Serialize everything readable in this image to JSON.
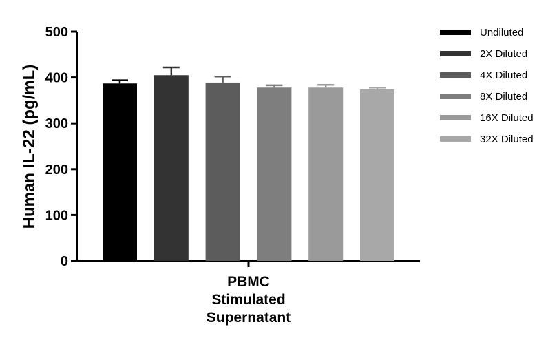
{
  "chart_data": {
    "type": "bar",
    "ylabel": "Human IL-22 (pg/mL)",
    "ylim": [
      0,
      500
    ],
    "yticks": [
      "0",
      "100",
      "200",
      "300",
      "400",
      "500"
    ],
    "category_lines": [
      "PBMC",
      "Stimulated",
      "Supernatant"
    ],
    "legend_position": "right",
    "grid": false,
    "series": [
      {
        "name": "Undiluted",
        "value": 387,
        "error": 7,
        "color": "#000000"
      },
      {
        "name": "2X Diluted",
        "value": 405,
        "error": 17,
        "color": "#333333"
      },
      {
        "name": "4X Diluted",
        "value": 389,
        "error": 13,
        "color": "#5c5c5c"
      },
      {
        "name": "8X Diluted",
        "value": 378,
        "error": 5,
        "color": "#7e7e7e"
      },
      {
        "name": "16X Diluted",
        "value": 378,
        "error": 6,
        "color": "#9a9a9a"
      },
      {
        "name": "32X Diluted",
        "value": 374,
        "error": 4,
        "color": "#a8a8a8"
      }
    ]
  }
}
